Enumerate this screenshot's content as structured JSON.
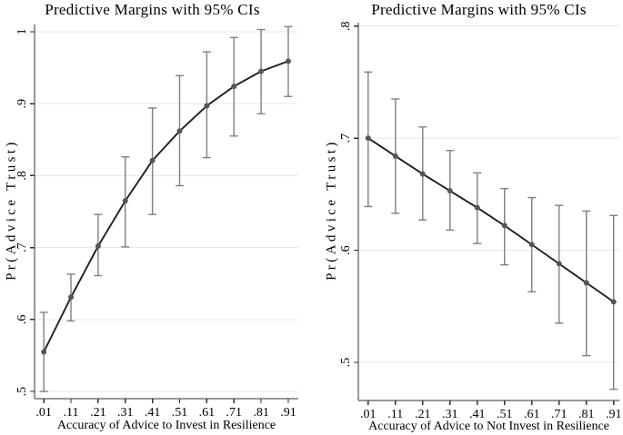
{
  "colors": {
    "background": "#ffffff",
    "gridline": "#e7e7e7",
    "axis": "#303030",
    "line": "#1f1f1f",
    "marker": "#565656",
    "error_bar": "#7f7f7f",
    "text": "#000000"
  },
  "chart_data": [
    {
      "type": "line",
      "panel": "left",
      "title": "Predictive Margins with 95% CIs",
      "xlabel": "Accuracy of Advice to Invest in Resilience",
      "ylabel": "Pr(Advice Trust)",
      "ci_level": "95%",
      "legend": "none",
      "grid": "horizontal",
      "x": [
        0.01,
        0.11,
        0.21,
        0.31,
        0.41,
        0.51,
        0.61,
        0.71,
        0.81,
        0.91
      ],
      "x_tick_labels": [
        ".01",
        ".11",
        ".21",
        ".31",
        ".41",
        ".51",
        ".61",
        ".71",
        ".81",
        ".91"
      ],
      "y": [
        0.555,
        0.631,
        0.702,
        0.765,
        0.821,
        0.862,
        0.897,
        0.924,
        0.945,
        0.959
      ],
      "ci_low": [
        0.5,
        0.598,
        0.661,
        0.701,
        0.746,
        0.786,
        0.825,
        0.855,
        0.886,
        0.91
      ],
      "ci_high": [
        0.61,
        0.663,
        0.746,
        0.826,
        0.894,
        0.939,
        0.972,
        0.992,
        1.003,
        1.007
      ],
      "y_tick_values": [
        0.5,
        0.6,
        0.7,
        0.8,
        0.9,
        1.0
      ],
      "y_tick_labels": [
        ".5",
        ".6",
        ".7",
        ".8",
        ".9",
        "1"
      ],
      "xlim": [
        -0.024,
        0.947
      ],
      "ylim": [
        0.49,
        1.01
      ]
    },
    {
      "type": "line",
      "panel": "right",
      "title": "Predictive Margins with 95% CIs",
      "xlabel": "Accuracy of Advice to Not Invest in Resilience",
      "ylabel": "Pr(Advice Trust)",
      "ci_level": "95%",
      "legend": "none",
      "grid": "horizontal",
      "x": [
        0.01,
        0.11,
        0.21,
        0.31,
        0.41,
        0.51,
        0.61,
        0.71,
        0.81,
        0.91
      ],
      "x_tick_labels": [
        ".01",
        ".11",
        ".21",
        ".31",
        ".41",
        ".51",
        ".61",
        ".71",
        ".81",
        ".91"
      ],
      "y": [
        0.7,
        0.684,
        0.668,
        0.653,
        0.638,
        0.622,
        0.605,
        0.588,
        0.571,
        0.554
      ],
      "ci_low": [
        0.639,
        0.633,
        0.627,
        0.618,
        0.606,
        0.587,
        0.563,
        0.535,
        0.506,
        0.476
      ],
      "ci_high": [
        0.759,
        0.735,
        0.71,
        0.689,
        0.669,
        0.655,
        0.647,
        0.64,
        0.635,
        0.631
      ],
      "y_tick_values": [
        0.5,
        0.6,
        0.7,
        0.8
      ],
      "y_tick_labels": [
        ".5",
        ".6",
        ".7",
        ".8"
      ],
      "xlim": [
        -0.026,
        0.931
      ],
      "ylim": [
        0.466,
        0.803
      ]
    }
  ]
}
